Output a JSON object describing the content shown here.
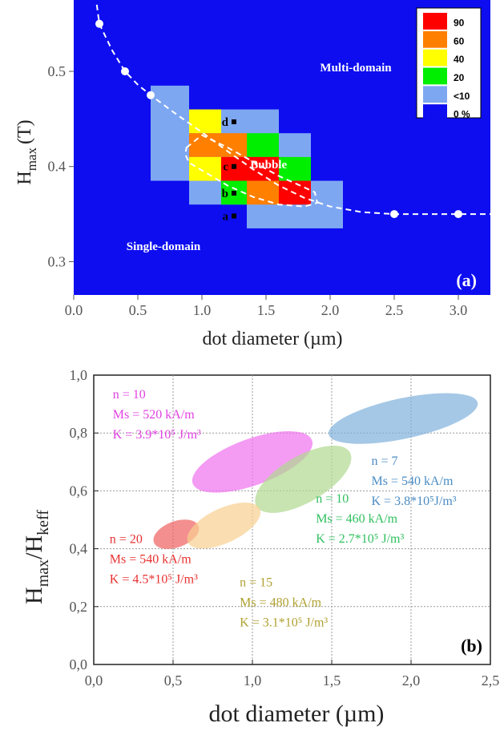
{
  "chart_data": [
    {
      "type": "heatmap",
      "panel_label": "(a)",
      "xlabel": "dot diameter (µm)",
      "ylabel": "Hmax (T)",
      "ylabel_main": "H",
      "ylabel_sub": "max",
      "ylabel_unit": "(T)",
      "xlim": [
        0,
        3.25
      ],
      "ylim": [
        0.265,
        0.575
      ],
      "xticks": [
        "0.0",
        "0.5",
        "1.0",
        "1.5",
        "2.0",
        "2.5",
        "3.0"
      ],
      "xtick_values": [
        0,
        0.5,
        1.0,
        1.5,
        2.0,
        2.5,
        3.0
      ],
      "yticks": [
        "0.3",
        "0.4",
        "0.5"
      ],
      "ytick_values": [
        0.3,
        0.4,
        0.5
      ],
      "colors": {
        "90": "#ff0000",
        "60": "#ff7f00",
        "40": "#ffff00",
        "20": "#00ee00",
        "<10": "#7ea7f2",
        "0 %": "#0d0df0"
      },
      "legend": [
        {
          "label": "90",
          "color": "#ff0000"
        },
        {
          "label": "60",
          "color": "#ff7f00"
        },
        {
          "label": "40",
          "color": "#ffff00"
        },
        {
          "label": "20",
          "color": "#00ee00"
        },
        {
          "label": "<10",
          "color": "#7ea7f2"
        },
        {
          "label": "0 %",
          "color": "#0d0df0"
        }
      ],
      "background_color": "#0d0df0",
      "cells_lowprob": [
        {
          "x0": 0.6,
          "x1": 0.9,
          "y0": 0.385,
          "y1": 0.485
        },
        {
          "x0": 0.9,
          "x1": 1.1,
          "y0": 0.36,
          "y1": 0.46
        },
        {
          "x0": 1.1,
          "x1": 1.6,
          "y0": 0.36,
          "y1": 0.46
        },
        {
          "x0": 1.35,
          "x1": 1.85,
          "y0": 0.335,
          "y1": 0.435
        },
        {
          "x0": 1.85,
          "x1": 2.1,
          "y0": 0.335,
          "y1": 0.385
        }
      ],
      "cells": [
        {
          "x0": 0.9,
          "x1": 1.15,
          "y0": 0.435,
          "y1": 0.46,
          "v": "40"
        },
        {
          "x0": 0.9,
          "x1": 1.15,
          "y0": 0.41,
          "y1": 0.435,
          "v": "60"
        },
        {
          "x0": 0.9,
          "x1": 1.15,
          "y0": 0.385,
          "y1": 0.41,
          "v": "40"
        },
        {
          "x0": 1.15,
          "x1": 1.35,
          "y0": 0.41,
          "y1": 0.435,
          "v": "60"
        },
        {
          "x0": 1.15,
          "x1": 1.35,
          "y0": 0.385,
          "y1": 0.41,
          "v": "90"
        },
        {
          "x0": 1.15,
          "x1": 1.35,
          "y0": 0.36,
          "y1": 0.385,
          "v": "20"
        },
        {
          "x0": 1.35,
          "x1": 1.6,
          "y0": 0.41,
          "y1": 0.435,
          "v": "20"
        },
        {
          "x0": 1.35,
          "x1": 1.6,
          "y0": 0.385,
          "y1": 0.41,
          "v": "90"
        },
        {
          "x0": 1.35,
          "x1": 1.6,
          "y0": 0.36,
          "y1": 0.385,
          "v": "60"
        },
        {
          "x0": 1.6,
          "x1": 1.85,
          "y0": 0.385,
          "y1": 0.41,
          "v": "20"
        },
        {
          "x0": 1.6,
          "x1": 1.85,
          "y0": 0.36,
          "y1": 0.385,
          "v": "90"
        }
      ],
      "boundary_points": [
        {
          "x": 0.2,
          "y": 0.55
        },
        {
          "x": 0.4,
          "y": 0.5
        },
        {
          "x": 0.6,
          "y": 0.475
        },
        {
          "x": 2.5,
          "y": 0.35
        },
        {
          "x": 3.0,
          "y": 0.35
        }
      ],
      "boundary_curve": [
        [
          0.18,
          0.57
        ],
        [
          0.2,
          0.55
        ],
        [
          0.3,
          0.522
        ],
        [
          0.4,
          0.5
        ],
        [
          0.5,
          0.486
        ],
        [
          0.6,
          0.475
        ],
        [
          0.8,
          0.455
        ],
        [
          1.0,
          0.436
        ],
        [
          1.2,
          0.416
        ],
        [
          1.4,
          0.397
        ],
        [
          1.6,
          0.38
        ],
        [
          1.8,
          0.367
        ],
        [
          2.0,
          0.358
        ],
        [
          2.25,
          0.352
        ],
        [
          2.5,
          0.35
        ],
        [
          3.0,
          0.35
        ],
        [
          3.25,
          0.35
        ]
      ],
      "bubble_boundary": [
        [
          0.88,
          0.42
        ],
        [
          1.0,
          0.433
        ],
        [
          1.2,
          0.42
        ],
        [
          1.4,
          0.405
        ],
        [
          1.6,
          0.39
        ],
        [
          1.75,
          0.381
        ],
        [
          1.88,
          0.373
        ],
        [
          1.9,
          0.362
        ],
        [
          1.8,
          0.358
        ],
        [
          1.6,
          0.36
        ],
        [
          1.4,
          0.368
        ],
        [
          1.2,
          0.38
        ],
        [
          1.05,
          0.392
        ],
        [
          0.9,
          0.404
        ],
        [
          0.87,
          0.413
        ],
        [
          0.88,
          0.42
        ]
      ],
      "points": [
        {
          "label": "a",
          "x": 1.25,
          "y": 0.348
        },
        {
          "label": "b",
          "x": 1.25,
          "y": 0.372
        },
        {
          "label": "c",
          "x": 1.25,
          "y": 0.4
        },
        {
          "label": "d",
          "x": 1.25,
          "y": 0.447
        }
      ],
      "regions": [
        {
          "label": "Multi-domain",
          "x": 2.2,
          "y": 0.5
        },
        {
          "label": "Single-domain",
          "x": 0.7,
          "y": 0.312
        },
        {
          "label": "Bubble",
          "x": 1.52,
          "y": 0.398
        }
      ]
    },
    {
      "type": "scatter",
      "panel_label": "(b)",
      "xlabel": "dot diameter (µm)",
      "ylabel": "Hmax/Hkeff",
      "ylabel_parts": [
        "H",
        "max",
        "/H",
        "keff"
      ],
      "xlim": [
        0,
        2.5
      ],
      "ylim": [
        0,
        1.0
      ],
      "xticks": [
        "0,0",
        "0,5",
        "1,0",
        "1,5",
        "2,0",
        "2,5"
      ],
      "xtick_values": [
        0,
        0.5,
        1.0,
        1.5,
        2.0,
        2.5
      ],
      "yticks": [
        "0,0",
        "0,2",
        "0,4",
        "0,6",
        "0,8",
        "1,0"
      ],
      "ytick_values": [
        0,
        0.2,
        0.4,
        0.6,
        0.8,
        1.0
      ],
      "grid": true,
      "series": [
        {
          "cx": 1.0,
          "cy": 0.7,
          "rx": 0.4,
          "ry": 0.08,
          "angle": -20,
          "color": "#f070f0",
          "lines": [
            "n = 10",
            "Ms = 520 kA/m",
            "K = 3.9*10⁵ J/m³"
          ]
        },
        {
          "cx": 1.95,
          "cy": 0.85,
          "rx": 0.48,
          "ry": 0.07,
          "angle": -12,
          "color": "#7fb0dc",
          "lines": [
            "n = 7",
            "Ms = 540 kA/m",
            "K = 3.8*10⁵J/m³"
          ]
        },
        {
          "cx": 1.32,
          "cy": 0.64,
          "rx": 0.34,
          "ry": 0.08,
          "angle": -30,
          "color": "#b0d890",
          "lines": [
            "n = 10",
            "Ms = 460 kA/m",
            "K = 2.7*10⁵ J/m³"
          ]
        },
        {
          "cx": 0.52,
          "cy": 0.45,
          "rx": 0.15,
          "ry": 0.045,
          "angle": -20,
          "color": "#f06060",
          "lines": [
            "n = 20",
            "Ms = 540 kA/m",
            "K = 4.5*10⁵ J/m³"
          ]
        },
        {
          "cx": 0.82,
          "cy": 0.48,
          "rx": 0.25,
          "ry": 0.06,
          "angle": -25,
          "color": "#f8d090",
          "lines": [
            "n = 15",
            "Ms = 480 kA/m",
            "K = 3.1*10⁵ J/m³"
          ]
        }
      ],
      "text_colors": [
        "#e040e0",
        "#4a8cc4",
        "#30c060",
        "#e83030",
        "#b0a030"
      ]
    }
  ]
}
